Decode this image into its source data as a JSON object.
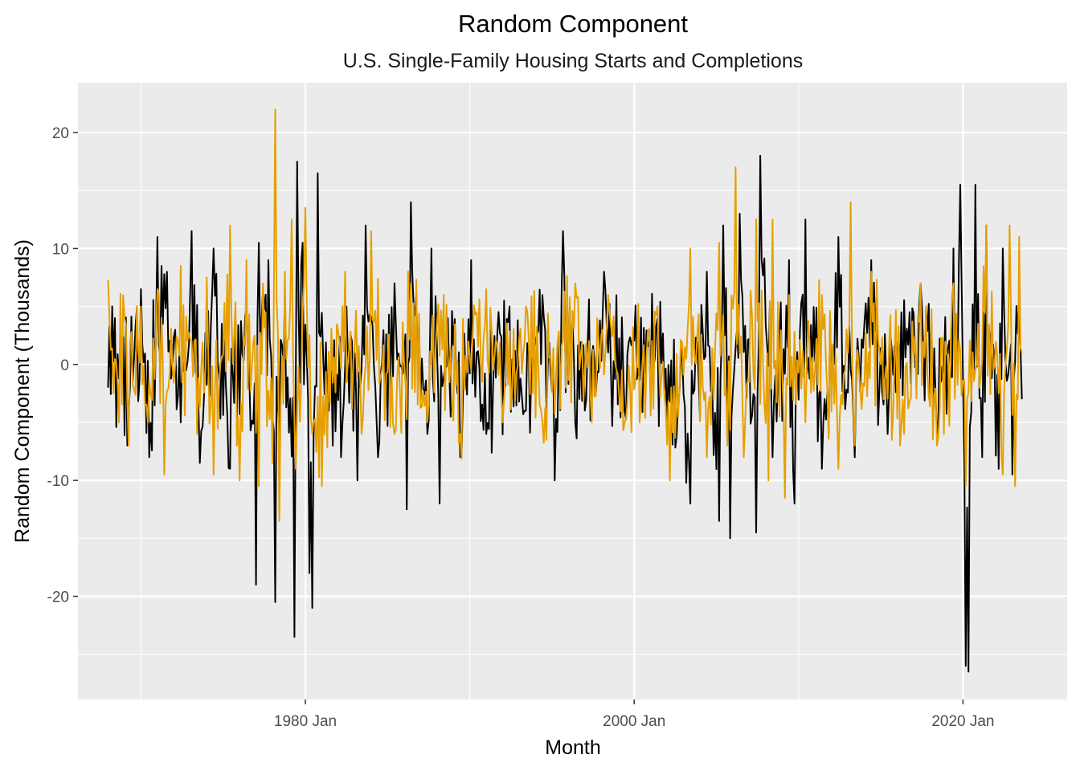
{
  "chart_data": {
    "type": "line",
    "title": "Random Component",
    "subtitle": "U.S. Single-Family Housing Starts and Completions",
    "xlabel": "Month",
    "ylabel": "Random Component (Thousands)",
    "x_range": [
      "1968-01",
      "2023-08"
    ],
    "xlim": [
      "1966-03",
      "2026-05"
    ],
    "ylim": [
      -28.9,
      24.3
    ],
    "x_ticks": [
      {
        "date": "1980-01",
        "label": "1980 Jan"
      },
      {
        "date": "2000-01",
        "label": "2000 Jan"
      },
      {
        "date": "2020-01",
        "label": "2020 Jan"
      }
    ],
    "x_minor_ticks": [
      "1970-01",
      "1990-01",
      "2010-01"
    ],
    "y_ticks": [
      {
        "value": -20,
        "label": "-20"
      },
      {
        "value": -10,
        "label": "-10"
      },
      {
        "value": 0,
        "label": "0"
      },
      {
        "value": 10,
        "label": "10"
      },
      {
        "value": 20,
        "label": "20"
      }
    ],
    "y_minor_ticks": [
      -25,
      -15,
      -5,
      5,
      15
    ],
    "background": "#ebebeb",
    "grid": true,
    "legend": "none",
    "series": [
      {
        "color": "#000000",
        "note_points": [
          [
            "1968-01",
            -2
          ],
          [
            "1968-06",
            4
          ],
          [
            "1969-03",
            -7
          ],
          [
            "1970-01",
            6.5
          ],
          [
            "1970-07",
            -8
          ],
          [
            "1971-01",
            11
          ],
          [
            "1972-06",
            -5
          ],
          [
            "1973-02",
            11.5
          ],
          [
            "1973-08",
            -8.5
          ],
          [
            "1974-06",
            10
          ],
          [
            "1975-06",
            -9
          ],
          [
            "1976-06",
            5
          ],
          [
            "1977-01",
            -19
          ],
          [
            "1977-03",
            10.5
          ],
          [
            "1977-10",
            9
          ],
          [
            "1978-03",
            -20.5
          ],
          [
            "1978-10",
            6
          ],
          [
            "1979-05",
            -23.5
          ],
          [
            "1979-07",
            17.5
          ],
          [
            "1979-11",
            10.5
          ],
          [
            "1980-04",
            -18
          ],
          [
            "1980-06",
            -21
          ],
          [
            "1980-10",
            16.5
          ],
          [
            "1981-06",
            -4
          ],
          [
            "1982-03",
            -8
          ],
          [
            "1982-07",
            5
          ],
          [
            "1983-03",
            -10
          ],
          [
            "1983-09",
            12
          ],
          [
            "1984-06",
            -8
          ],
          [
            "1985-06",
            7
          ],
          [
            "1986-03",
            -12.5
          ],
          [
            "1986-06",
            14
          ],
          [
            "1987-06",
            -6
          ],
          [
            "1987-09",
            10
          ],
          [
            "1988-03",
            -12
          ],
          [
            "1988-09",
            4
          ],
          [
            "1989-06",
            -8
          ],
          [
            "1990-02",
            9
          ],
          [
            "1991-01",
            -6
          ],
          [
            "1992-06",
            5
          ],
          [
            "1993-06",
            -4
          ],
          [
            "1994-06",
            6
          ],
          [
            "1995-03",
            -10
          ],
          [
            "1995-09",
            11.5
          ],
          [
            "1996-06",
            -5
          ],
          [
            "1998-03",
            8
          ],
          [
            "1999-06",
            -4
          ],
          [
            "2001-06",
            4
          ],
          [
            "2003-06",
            -12
          ],
          [
            "2004-06",
            8
          ],
          [
            "2005-03",
            -13.5
          ],
          [
            "2005-06",
            12
          ],
          [
            "2005-11",
            -15
          ],
          [
            "2006-06",
            13
          ],
          [
            "2007-06",
            -14.5
          ],
          [
            "2007-09",
            18
          ],
          [
            "2008-06",
            -8
          ],
          [
            "2009-06",
            9
          ],
          [
            "2009-10",
            -12
          ],
          [
            "2010-06",
            12.5
          ],
          [
            "2011-06",
            -9
          ],
          [
            "2012-06",
            11
          ],
          [
            "2013-06",
            -8
          ],
          [
            "2014-06",
            9
          ],
          [
            "2015-06",
            -6
          ],
          [
            "2017-06",
            7
          ],
          [
            "2018-06",
            -6
          ],
          [
            "2019-06",
            10
          ],
          [
            "2019-11",
            15.5
          ],
          [
            "2020-03",
            -26
          ],
          [
            "2020-05",
            -26.5
          ],
          [
            "2020-10",
            15.5
          ],
          [
            "2021-03",
            -8
          ],
          [
            "2021-06",
            12
          ],
          [
            "2022-03",
            -9
          ],
          [
            "2022-06",
            10
          ],
          [
            "2023-01",
            -9.5
          ],
          [
            "2023-06",
            4.5
          ],
          [
            "2023-08",
            -3
          ]
        ]
      },
      {
        "color": "#e69f00",
        "note_points": [
          [
            "1968-01",
            7.3
          ],
          [
            "1968-05",
            -2.5
          ],
          [
            "1969-01",
            4
          ],
          [
            "1969-04",
            -7
          ],
          [
            "1970-01",
            5
          ],
          [
            "1970-06",
            -5
          ],
          [
            "1971-01",
            6.5
          ],
          [
            "1971-06",
            -9.5
          ],
          [
            "1972-06",
            8.5
          ],
          [
            "1973-06",
            -6
          ],
          [
            "1974-01",
            7.5
          ],
          [
            "1974-06",
            -9.5
          ],
          [
            "1975-06",
            12
          ],
          [
            "1976-01",
            -10
          ],
          [
            "1976-06",
            9
          ],
          [
            "1977-03",
            -10.5
          ],
          [
            "1977-06",
            7
          ],
          [
            "1978-01",
            -8.5
          ],
          [
            "1978-03",
            22
          ],
          [
            "1978-06",
            -13.5
          ],
          [
            "1978-10",
            8
          ],
          [
            "1979-03",
            12.5
          ],
          [
            "1979-06",
            -9
          ],
          [
            "1980-01",
            13.5
          ],
          [
            "1980-06",
            -6
          ],
          [
            "1981-01",
            -10.5
          ],
          [
            "1982-06",
            8
          ],
          [
            "1983-06",
            -6
          ],
          [
            "1984-01",
            11.5
          ],
          [
            "1985-06",
            -6
          ],
          [
            "1986-06",
            7
          ],
          [
            "1987-06",
            -5
          ],
          [
            "1988-06",
            6
          ],
          [
            "1989-06",
            -6
          ],
          [
            "1991-01",
            6.5
          ],
          [
            "1992-01",
            -5
          ],
          [
            "1993-06",
            5
          ],
          [
            "1994-06",
            -5
          ],
          [
            "1996-06",
            7
          ],
          [
            "1997-06",
            -5
          ],
          [
            "1998-06",
            6
          ],
          [
            "1999-06",
            -5
          ],
          [
            "2001-06",
            5
          ],
          [
            "2002-03",
            -10
          ],
          [
            "2003-06",
            10
          ],
          [
            "2004-06",
            -8
          ],
          [
            "2005-03",
            10.5
          ],
          [
            "2005-09",
            -7
          ],
          [
            "2006-03",
            17
          ],
          [
            "2006-09",
            -8
          ],
          [
            "2007-06",
            12.5
          ],
          [
            "2008-03",
            -10
          ],
          [
            "2008-06",
            12.5
          ],
          [
            "2009-03",
            -11.5
          ],
          [
            "2009-06",
            6
          ],
          [
            "2010-06",
            -5
          ],
          [
            "2011-06",
            6
          ],
          [
            "2012-06",
            -9
          ],
          [
            "2013-03",
            14
          ],
          [
            "2013-06",
            -7
          ],
          [
            "2014-06",
            8
          ],
          [
            "2016-06",
            -6
          ],
          [
            "2017-06",
            7
          ],
          [
            "2018-06",
            -7
          ],
          [
            "2019-06",
            7
          ],
          [
            "2020-03",
            -10.5
          ],
          [
            "2021-06",
            12
          ],
          [
            "2022-06",
            -9.5
          ],
          [
            "2022-11",
            12
          ],
          [
            "2023-03",
            -10.5
          ],
          [
            "2023-06",
            11
          ],
          [
            "2023-08",
            1
          ]
        ],
        "values_note": "dense monthly series; key peaks/troughs recorded"
      }
    ]
  }
}
